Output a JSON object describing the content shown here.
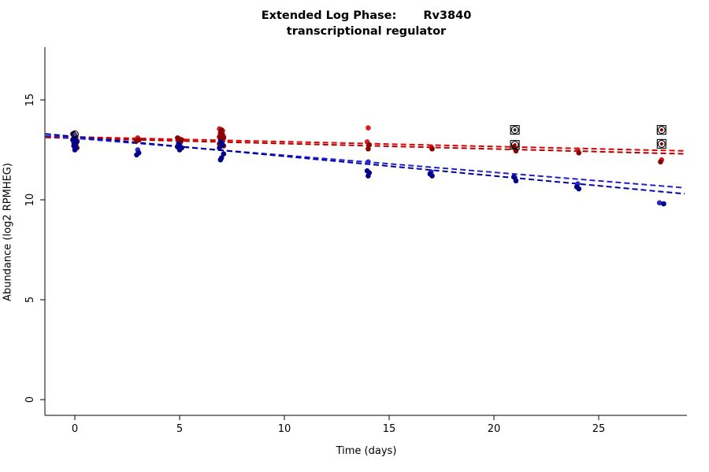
{
  "chart": {
    "title_prefix": "Extended Log Phase:",
    "title_gene": "Rv3840",
    "subtitle": "transcriptional regulator",
    "xlabel": "Time  (days)",
    "ylabel": "Abundance  (log2 RPMHEG)"
  },
  "chart_data": {
    "type": "scatter",
    "title": "Extended Log Phase: Rv3840 transcriptional regulator",
    "xlabel": "Time (days)",
    "ylabel": "Abundance (log2 RPMHEG)",
    "xlim": [
      -1.4,
      29.1
    ],
    "ylim": [
      -0.8,
      17.4
    ],
    "x_ticks": [
      0,
      5,
      10,
      15,
      20,
      25
    ],
    "y_ticks": [
      0,
      5,
      10,
      15
    ],
    "grid": false,
    "legend": "none",
    "series": [
      {
        "name": "red-bright",
        "color": "#d42020",
        "points": [
          [
            0,
            13.25
          ],
          [
            0.05,
            13.0
          ],
          [
            -0.05,
            12.85
          ],
          [
            3,
            13.1
          ],
          [
            5,
            13.05
          ],
          [
            6.9,
            13.55
          ],
          [
            7.05,
            13.45
          ],
          [
            6.95,
            13.3
          ],
          [
            7.1,
            13.15
          ],
          [
            7,
            13.05
          ],
          [
            14,
            13.6
          ],
          [
            13.95,
            12.9
          ],
          [
            17,
            12.65
          ],
          [
            21,
            12.6
          ],
          [
            24,
            12.5
          ],
          [
            28,
            12.0
          ]
        ]
      },
      {
        "name": "red-dark",
        "color": "#8b0000",
        "points": [
          [
            -0.1,
            13.3
          ],
          [
            0.05,
            13.15
          ],
          [
            0,
            13.05
          ],
          [
            0.1,
            12.95
          ],
          [
            -0.05,
            12.9
          ],
          [
            0.05,
            12.75
          ],
          [
            0,
            12.65
          ],
          [
            0.1,
            12.6
          ],
          [
            3.05,
            13.0
          ],
          [
            2.95,
            12.95
          ],
          [
            4.9,
            13.1
          ],
          [
            5.1,
            13.0
          ],
          [
            4.95,
            12.95
          ],
          [
            5.05,
            12.9
          ],
          [
            5,
            12.85
          ],
          [
            7,
            13.5
          ],
          [
            6.95,
            13.35
          ],
          [
            7.05,
            13.25
          ],
          [
            6.9,
            13.15
          ],
          [
            7.1,
            13.1
          ],
          [
            6.95,
            13.0
          ],
          [
            7.05,
            12.95
          ],
          [
            7,
            12.85
          ],
          [
            6.9,
            12.8
          ],
          [
            7.1,
            12.7
          ],
          [
            14.05,
            12.75
          ],
          [
            14,
            12.55
          ],
          [
            17.05,
            12.55
          ],
          [
            20.95,
            12.65
          ],
          [
            21.05,
            12.45
          ],
          [
            24.05,
            12.35
          ],
          [
            27.95,
            11.9
          ]
        ]
      },
      {
        "name": "blue-bright",
        "color": "#2828c8",
        "points": [
          [
            0,
            13.2
          ],
          [
            0.05,
            12.95
          ],
          [
            3,
            12.5
          ],
          [
            5,
            12.75
          ],
          [
            7,
            12.85
          ],
          [
            14,
            11.9
          ],
          [
            17,
            11.4
          ],
          [
            21,
            11.1
          ],
          [
            24,
            10.8
          ],
          [
            27.9,
            9.85
          ]
        ]
      },
      {
        "name": "blue-dark",
        "color": "#00008b",
        "points": [
          [
            -0.05,
            13.3
          ],
          [
            0,
            13.1
          ],
          [
            -0.1,
            13.0
          ],
          [
            0.1,
            12.9
          ],
          [
            0,
            12.8
          ],
          [
            -0.05,
            12.7
          ],
          [
            0.05,
            12.6
          ],
          [
            0,
            12.5
          ],
          [
            3.05,
            12.35
          ],
          [
            2.95,
            12.25
          ],
          [
            4.95,
            12.8
          ],
          [
            5,
            12.7
          ],
          [
            4.9,
            12.65
          ],
          [
            5.1,
            12.6
          ],
          [
            5,
            12.5
          ],
          [
            6.95,
            12.9
          ],
          [
            7.05,
            12.75
          ],
          [
            6.9,
            12.6
          ],
          [
            7.1,
            12.3
          ],
          [
            7,
            12.1
          ],
          [
            6.95,
            12.0
          ],
          [
            13.95,
            11.45
          ],
          [
            14.05,
            11.35
          ],
          [
            14,
            11.2
          ],
          [
            16.95,
            11.3
          ],
          [
            17.05,
            11.2
          ],
          [
            20.95,
            11.15
          ],
          [
            21.05,
            10.95
          ],
          [
            23.95,
            10.65
          ],
          [
            24.05,
            10.55
          ],
          [
            28.1,
            9.8
          ]
        ]
      }
    ],
    "trend_lines": [
      {
        "name": "red-fit-1",
        "color": "#e00000",
        "style": "dashed",
        "x1": -1.4,
        "y1": 13.18,
        "x2": 29.1,
        "y2": 12.45
      },
      {
        "name": "red-fit-2",
        "color": "#b00000",
        "style": "dashed",
        "x1": -1.4,
        "y1": 13.12,
        "x2": 29.1,
        "y2": 12.3
      },
      {
        "name": "blue-fit-1",
        "color": "#2020d0",
        "style": "dashed",
        "x1": -1.4,
        "y1": 13.2,
        "x2": 29.1,
        "y2": 10.6
      },
      {
        "name": "blue-fit-2",
        "color": "#0000a0",
        "style": "dashed",
        "x1": -1.4,
        "y1": 13.3,
        "x2": 29.1,
        "y2": 10.3
      }
    ],
    "outlier_markers": [
      {
        "x": 0,
        "y": 13.28,
        "shape": "circle",
        "dot_color": "#555555"
      },
      {
        "x": 21,
        "y": 13.5,
        "shape": "square-circle-dot",
        "dot_color": "#333333"
      },
      {
        "x": 21,
        "y": 12.75,
        "shape": "square-circle-dot",
        "dot_color": "#8b0000"
      },
      {
        "x": 28,
        "y": 13.5,
        "shape": "square-circle-dot",
        "dot_color": "#8b0000"
      },
      {
        "x": 28,
        "y": 12.8,
        "shape": "square-circle-dot",
        "dot_color": "#8b0000"
      }
    ]
  }
}
